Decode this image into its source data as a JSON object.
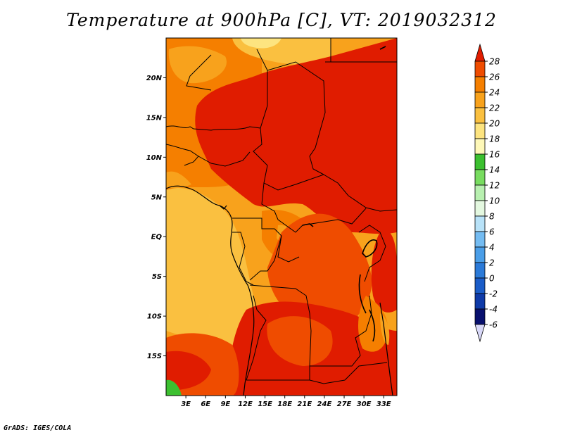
{
  "title": "Temperature at 900hPa [C], VT: 2019032312",
  "footer": "GrADS: IGES/COLA",
  "map": {
    "lon_range": [
      0,
      35
    ],
    "lat_range": [
      -20,
      25
    ],
    "lat_ticks": [
      {
        "value": 20,
        "label": "20N"
      },
      {
        "value": 15,
        "label": "15N"
      },
      {
        "value": 10,
        "label": "10N"
      },
      {
        "value": 5,
        "label": "5N"
      },
      {
        "value": 0,
        "label": "EQ"
      },
      {
        "value": -5,
        "label": "5S"
      },
      {
        "value": -10,
        "label": "10S"
      },
      {
        "value": -15,
        "label": "15S"
      }
    ],
    "lon_ticks": [
      {
        "value": 3,
        "label": "3E"
      },
      {
        "value": 6,
        "label": "6E"
      },
      {
        "value": 9,
        "label": "9E"
      },
      {
        "value": 12,
        "label": "12E"
      },
      {
        "value": 15,
        "label": "15E"
      },
      {
        "value": 18,
        "label": "18E"
      },
      {
        "value": 21,
        "label": "21E"
      },
      {
        "value": 24,
        "label": "24E"
      },
      {
        "value": 27,
        "label": "27E"
      },
      {
        "value": 30,
        "label": "30E"
      },
      {
        "value": 33,
        "label": "33E"
      }
    ]
  },
  "colorbar": {
    "levels": [
      "28",
      "26",
      "24",
      "22",
      "20",
      "18",
      "16",
      "14",
      "12",
      "10",
      "8",
      "6",
      "4",
      "2",
      "0",
      "-2",
      "-4",
      "-6"
    ],
    "colors": [
      "#e01c00",
      "#ef4c00",
      "#f57f00",
      "#f8a21c",
      "#fac040",
      "#fde480",
      "#fef8b8",
      "#3cc030",
      "#78dc60",
      "#b8f0b0",
      "#e4f8e0",
      "#b8e2f8",
      "#74bcf2",
      "#4a9ee8",
      "#2b7ad8",
      "#1a5cc8",
      "#0e3aa8",
      "#08106e",
      "#d8d8f8"
    ]
  }
}
